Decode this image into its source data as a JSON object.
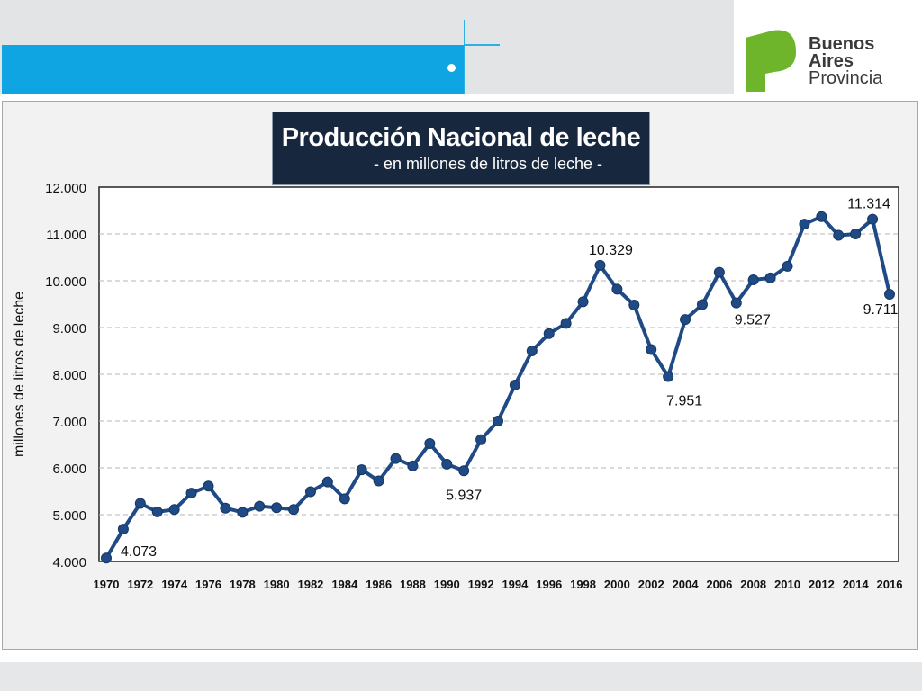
{
  "brand": {
    "line1": "Buenos",
    "line2": "Aires",
    "line3": "Provincia",
    "logo_color": "#6fb52c"
  },
  "colors": {
    "header_accent": "#0ea5e2",
    "title_box": "#17273e",
    "series_line": "#1f4a86"
  },
  "chart_data": {
    "type": "line",
    "title": "Producción Nacional de leche",
    "subtitle": "- en millones de litros de leche -",
    "xlabel": "",
    "ylabel": "millones de litros de leche",
    "ylim": [
      4000,
      12000
    ],
    "yticks": [
      4000,
      5000,
      6000,
      7000,
      8000,
      9000,
      10000,
      11000,
      12000
    ],
    "ytick_labels": [
      "4.000",
      "5.000",
      "6.000",
      "7.000",
      "8.000",
      "9.000",
      "10.000",
      "11.000",
      "12.000"
    ],
    "xlim": [
      1970,
      2016
    ],
    "xtick_labels": [
      "1970",
      "1972",
      "1974",
      "1976",
      "1978",
      "1980",
      "1982",
      "1984",
      "1986",
      "1988",
      "1990",
      "1992",
      "1994",
      "1996",
      "1998",
      "2000",
      "2002",
      "2004",
      "2006",
      "2008",
      "2010",
      "2012",
      "2014",
      "2016"
    ],
    "grid": "horizontal dashed",
    "series": [
      {
        "x": [
          1970,
          1971,
          1972,
          1973,
          1974,
          1975,
          1976,
          1977,
          1978,
          1979,
          1980,
          1981,
          1982,
          1983,
          1984,
          1985,
          1986,
          1987,
          1988,
          1989,
          1990,
          1991,
          1992,
          1993,
          1994,
          1995,
          1996,
          1997,
          1998,
          1999,
          2000,
          2001,
          2002,
          2003,
          2004,
          2005,
          2006,
          2007,
          2008,
          2009,
          2010,
          2011,
          2012,
          2013,
          2014,
          2015,
          2016
        ],
        "values": [
          4073,
          4690,
          5240,
          5060,
          5110,
          5460,
          5610,
          5140,
          5050,
          5180,
          5150,
          5110,
          5490,
          5700,
          5340,
          5960,
          5720,
          6200,
          6040,
          6520,
          6080,
          5937,
          6600,
          7000,
          7770,
          8500,
          8870,
          9090,
          9550,
          10329,
          9820,
          9480,
          8530,
          7951,
          9170,
          9490,
          10180,
          9527,
          10020,
          10060,
          10310,
          11210,
          11370,
          10970,
          11000,
          11314,
          9711
        ]
      }
    ],
    "annotations": [
      {
        "x": 1970,
        "y": 4073,
        "label": "4.073"
      },
      {
        "x": 1991,
        "y": 5937,
        "label": "5.937"
      },
      {
        "x": 1999,
        "y": 10329,
        "label": "10.329"
      },
      {
        "x": 2003,
        "y": 7951,
        "label": "7.951"
      },
      {
        "x": 2007,
        "y": 9527,
        "label": "9.527"
      },
      {
        "x": 2015,
        "y": 11314,
        "label": "11.314"
      },
      {
        "x": 2016,
        "y": 9711,
        "label": "9.711"
      }
    ]
  }
}
